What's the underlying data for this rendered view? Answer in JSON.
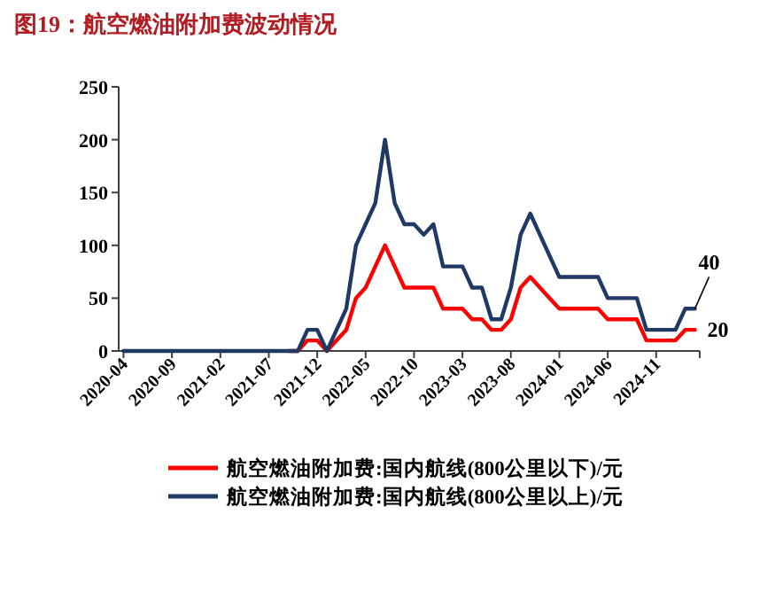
{
  "chart_data": {
    "type": "line",
    "title": "图19：航空燃油附加费波动情况",
    "categories": [
      "2020-04",
      null,
      null,
      null,
      null,
      "2020-09",
      null,
      null,
      null,
      null,
      "2021-02",
      null,
      null,
      null,
      null,
      "2021-07",
      null,
      null,
      null,
      null,
      "2021-12",
      null,
      null,
      null,
      null,
      "2022-05",
      null,
      null,
      null,
      null,
      "2022-10",
      null,
      null,
      null,
      null,
      "2023-03",
      null,
      null,
      null,
      null,
      "2023-08",
      null,
      null,
      null,
      null,
      "2024-01",
      null,
      null,
      null,
      null,
      "2024-06",
      null,
      null,
      null,
      null,
      "2024-11",
      null,
      null,
      null,
      null
    ],
    "series": [
      {
        "name": "航空燃油附加费:国内航线(800公里以下)/元",
        "color": "#ff0000",
        "values": [
          null,
          null,
          null,
          null,
          null,
          null,
          null,
          null,
          null,
          null,
          null,
          null,
          null,
          null,
          null,
          null,
          null,
          0,
          0,
          10,
          10,
          0,
          10,
          20,
          50,
          60,
          80,
          100,
          80,
          60,
          60,
          60,
          60,
          40,
          40,
          40,
          30,
          30,
          20,
          20,
          30,
          60,
          70,
          60,
          50,
          40,
          40,
          40,
          40,
          40,
          30,
          30,
          30,
          30,
          10,
          10,
          10,
          10,
          20,
          20
        ],
        "value_labels": [
          null,
          null,
          null,
          null,
          null,
          null,
          null,
          null,
          null,
          null,
          null,
          null,
          null,
          null,
          null,
          null,
          null,
          null,
          null,
          null,
          null,
          null,
          null,
          null,
          null,
          null,
          null,
          null,
          null,
          null,
          null,
          null,
          null,
          null,
          null,
          null,
          null,
          null,
          null,
          null,
          null,
          null,
          null,
          null,
          null,
          null,
          null,
          null,
          null,
          null,
          null,
          null,
          null,
          null,
          null,
          null,
          null,
          null,
          null,
          "20"
        ]
      },
      {
        "name": "航空燃油附加费:国内航线(800公里以上)/元",
        "color": "#1f3864",
        "values": [
          0,
          0,
          0,
          0,
          0,
          0,
          0,
          0,
          0,
          0,
          0,
          0,
          0,
          0,
          0,
          0,
          0,
          0,
          0,
          20,
          20,
          0,
          20,
          40,
          100,
          120,
          140,
          200,
          140,
          120,
          120,
          110,
          120,
          80,
          80,
          80,
          60,
          60,
          30,
          30,
          60,
          110,
          130,
          110,
          90,
          70,
          70,
          70,
          70,
          70,
          50,
          50,
          50,
          50,
          20,
          20,
          20,
          20,
          40,
          40
        ],
        "value_labels": [
          null,
          null,
          null,
          null,
          null,
          null,
          null,
          null,
          null,
          null,
          null,
          null,
          null,
          null,
          null,
          null,
          null,
          null,
          null,
          null,
          null,
          null,
          null,
          null,
          null,
          null,
          null,
          null,
          null,
          null,
          null,
          null,
          null,
          null,
          null,
          null,
          null,
          null,
          null,
          null,
          null,
          null,
          null,
          null,
          null,
          null,
          null,
          null,
          null,
          null,
          null,
          null,
          null,
          null,
          null,
          null,
          null,
          null,
          null,
          "40"
        ]
      }
    ],
    "ylim": [
      0,
      250
    ],
    "yticks": [
      0,
      50,
      100,
      150,
      200,
      250
    ],
    "grid": false,
    "legend": "bottom",
    "marker": "none",
    "line_style": "solid"
  }
}
